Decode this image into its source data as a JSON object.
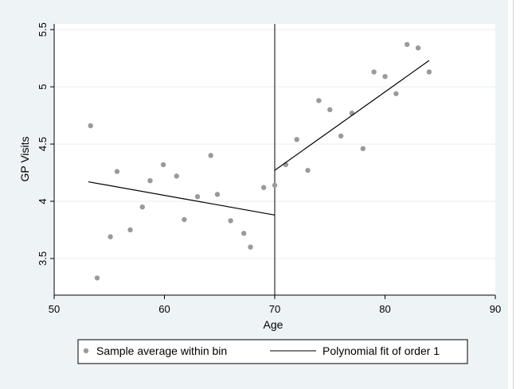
{
  "chart_data": {
    "type": "scatter",
    "title": "",
    "xlabel": "Age",
    "ylabel": "GP Visits",
    "xlim": [
      50,
      90
    ],
    "ylim": [
      3.18,
      5.55
    ],
    "xticks": [
      50,
      60,
      70,
      80,
      90
    ],
    "yticks": [
      3.5,
      4,
      4.5,
      5,
      5.5
    ],
    "xtick_labels": [
      "50",
      "60",
      "70",
      "80",
      "90"
    ],
    "ytick_labels": [
      "3.5",
      "4",
      "4.5",
      "5",
      "5.5"
    ],
    "grid": "horizontal",
    "cutoff": 70,
    "legend": {
      "placement": "bottom",
      "entries": [
        "Sample average within bin",
        "Polynomial fit of order 1"
      ]
    },
    "series": [
      {
        "name": "Sample average within bin",
        "kind": "scatter",
        "color": "#9a9a9a",
        "points": [
          [
            53.3,
            4.66
          ],
          [
            53.9,
            3.33
          ],
          [
            55.1,
            3.69
          ],
          [
            55.7,
            4.26
          ],
          [
            56.9,
            3.75
          ],
          [
            58.0,
            3.95
          ],
          [
            58.7,
            4.18
          ],
          [
            59.9,
            4.32
          ],
          [
            61.1,
            4.22
          ],
          [
            61.8,
            3.84
          ],
          [
            63.0,
            4.04
          ],
          [
            64.2,
            4.4
          ],
          [
            64.8,
            4.06
          ],
          [
            66.0,
            3.83
          ],
          [
            67.2,
            3.72
          ],
          [
            67.8,
            3.6
          ],
          [
            69.0,
            4.12
          ],
          [
            70.0,
            4.14
          ],
          [
            71.0,
            4.32
          ],
          [
            72.0,
            4.54
          ],
          [
            73.0,
            4.27
          ],
          [
            74.0,
            4.88
          ],
          [
            75.0,
            4.8
          ],
          [
            76.0,
            4.57
          ],
          [
            77.0,
            4.77
          ],
          [
            78.0,
            4.46
          ],
          [
            79.0,
            5.13
          ],
          [
            80.0,
            5.09
          ],
          [
            81.0,
            4.94
          ],
          [
            82.0,
            5.37
          ],
          [
            83.0,
            5.34
          ],
          [
            84.0,
            5.13
          ]
        ]
      },
      {
        "name": "Polynomial fit of order 1",
        "kind": "line",
        "color": "#000000",
        "segments": [
          [
            [
              53.1,
              4.17
            ],
            [
              70.0,
              3.88
            ]
          ],
          [
            [
              70.0,
              4.27
            ],
            [
              84.0,
              5.23
            ]
          ]
        ]
      }
    ]
  }
}
